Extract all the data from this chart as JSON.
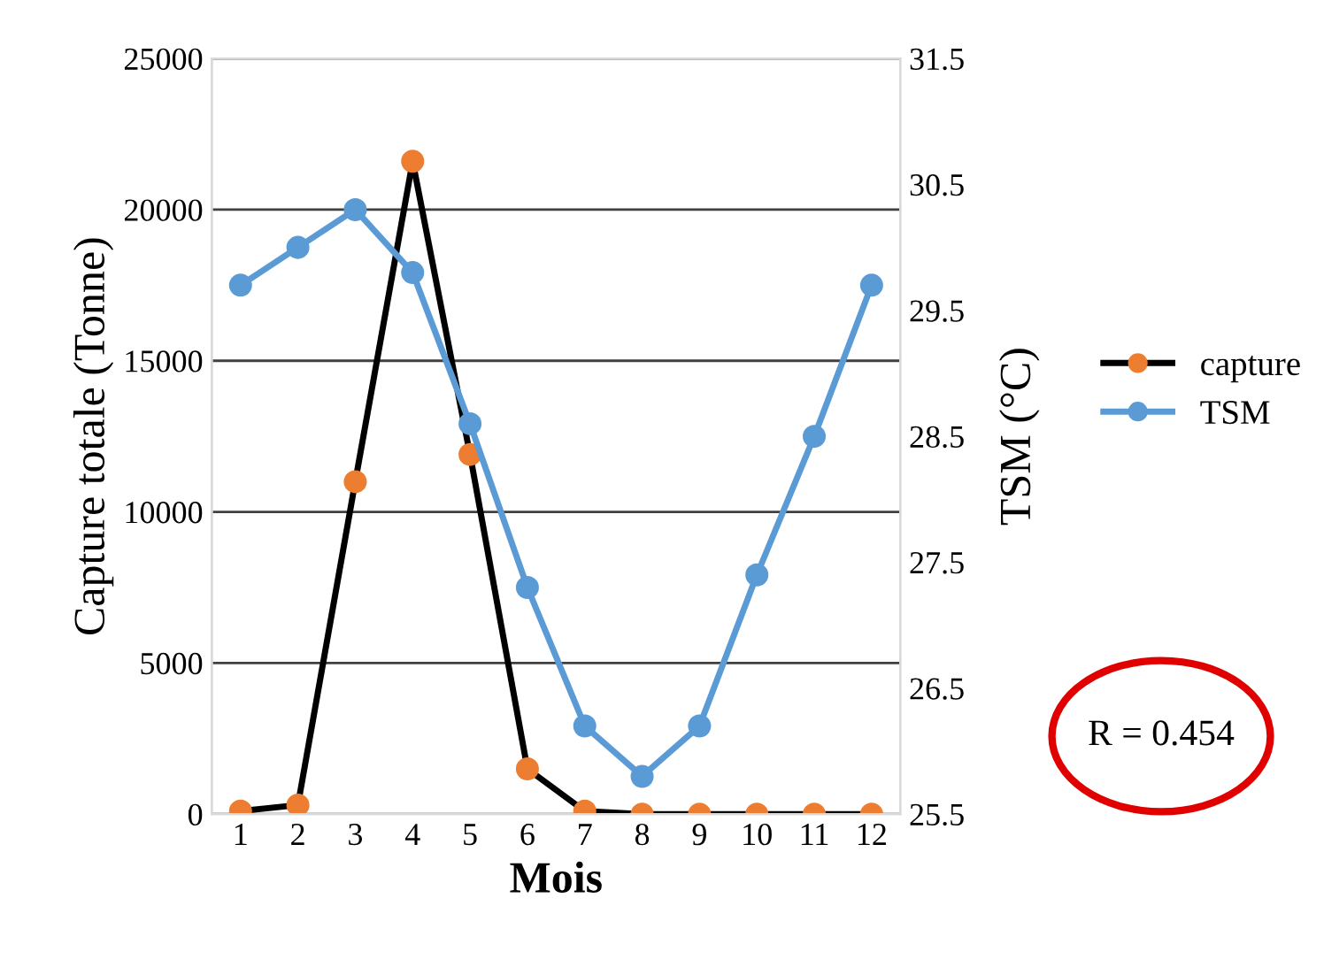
{
  "chart_data": {
    "type": "line",
    "xlabel": "Mois",
    "ylabel": "Capture totale (Tonne)",
    "y2label": "TSM (°C)",
    "categories": [
      "1",
      "2",
      "3",
      "4",
      "5",
      "6",
      "7",
      "8",
      "9",
      "10",
      "11",
      "12"
    ],
    "series": [
      {
        "name": "capture",
        "color": "#000000",
        "colors": [
          "#ed7d31",
          "#ed7d31",
          "#ed7d31",
          "#ed7d31",
          "#ed7d31",
          "#ed7d31",
          "#ed7d31",
          "#ed7d31",
          "#ed7d31",
          "#ed7d31",
          "#ed7d31",
          "#ed7d31"
        ],
        "values": [
          100,
          300,
          11000,
          21600,
          11900,
          1500,
          100,
          0,
          0,
          0,
          0,
          0
        ]
      },
      {
        "name": "TSM",
        "color": "#5b9bd5",
        "axis": "y2",
        "values": [
          29.7,
          30.0,
          30.3,
          29.8,
          28.6,
          27.3,
          26.2,
          25.8,
          26.2,
          27.4,
          28.5,
          29.7
        ]
      }
    ],
    "ylim": [
      0,
      25000
    ],
    "yticks": [
      0,
      5000,
      10000,
      15000,
      20000,
      25000
    ],
    "y2lim": [
      25.5,
      31.5
    ],
    "y2ticks": [
      25.5,
      26.5,
      27.5,
      28.5,
      29.5,
      30.5,
      31.5
    ],
    "grid": "y",
    "legend": "right",
    "marker": "circle",
    "line_style": "solid",
    "annotations": [
      "R = 0.454"
    ]
  }
}
